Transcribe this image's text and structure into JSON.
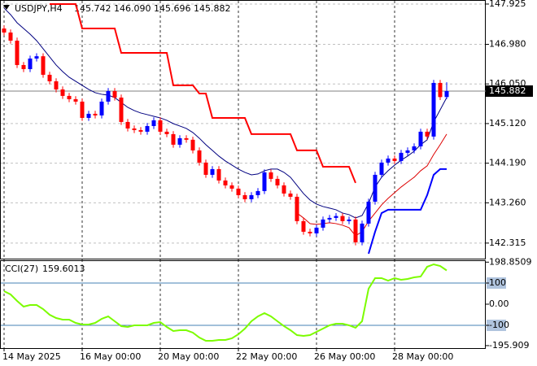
{
  "chart_data": [
    {
      "type": "candlestick",
      "symbol": "USDJPY,H4",
      "quote": "145.742 146.090 145.696 145.882",
      "up_color": "#0000ff",
      "down_color": "#ff0000",
      "ylim": [
        141.95,
        148.02
      ],
      "yticks": [
        147.925,
        {
          "value": 146.98,
          "label": "146.980"
        },
        {
          "value": 146.05,
          "label": "146.050"
        },
        {
          "value": 145.12,
          "label": "145.120"
        },
        {
          "value": 144.19,
          "label": "144.190"
        },
        {
          "value": 143.26,
          "label": "143.260"
        },
        142.315
      ],
      "xticks": [
        {
          "value": 0,
          "label": "14 May 2025"
        },
        {
          "value": 12,
          "label": "16 May 00:00"
        },
        {
          "value": 24,
          "label": "20 May 00:00"
        },
        {
          "value": 36,
          "label": "22 May 00:00"
        },
        {
          "value": 48,
          "label": "26 May 00:00"
        },
        {
          "value": 60,
          "label": "28 May 00:00"
        }
      ],
      "last_price": 145.882,
      "open": [
        147.35,
        147.257,
        147.066,
        146.494,
        146.398,
        146.646,
        146.7,
        146.265,
        146.112,
        145.921,
        145.769,
        145.692,
        145.635,
        145.253,
        145.349,
        145.311,
        145.635,
        145.883,
        145.73,
        145.158,
        145.005,
        144.967,
        144.929,
        145.062,
        145.196,
        144.929,
        144.872,
        144.624,
        144.776,
        144.74,
        144.49,
        144.204,
        143.917,
        144.051,
        143.784,
        143.669,
        143.593,
        143.44,
        143.345,
        143.44,
        143.536,
        143.975,
        143.822,
        143.669,
        143.478,
        143.402,
        142.83,
        142.581,
        142.543,
        142.677,
        142.868,
        142.906,
        142.95,
        142.83,
        142.868,
        142.333,
        142.772,
        143.287,
        143.917,
        144.204,
        144.299,
        144.242,
        144.433,
        144.49,
        144.585,
        144.929,
        144.815,
        146.074,
        145.742
      ],
      "high": [
        147.42,
        147.327,
        147.136,
        146.564,
        146.716,
        146.77,
        146.77,
        146.335,
        146.182,
        145.991,
        145.839,
        145.762,
        145.705,
        145.419,
        145.419,
        145.705,
        145.953,
        145.953,
        145.8,
        145.228,
        145.075,
        145.037,
        145.132,
        145.266,
        145.266,
        144.999,
        144.942,
        144.846,
        144.846,
        144.81,
        144.56,
        144.274,
        144.121,
        144.121,
        143.854,
        143.739,
        143.663,
        143.51,
        143.51,
        143.606,
        144.045,
        144.045,
        143.892,
        143.739,
        143.548,
        143.472,
        142.9,
        142.651,
        142.747,
        142.938,
        142.976,
        143.02,
        143.02,
        142.938,
        142.938,
        142.842,
        143.357,
        143.987,
        144.274,
        144.369,
        144.369,
        144.503,
        144.56,
        144.655,
        144.999,
        144.999,
        146.144,
        146.144,
        146.09
      ],
      "low": [
        147.187,
        146.996,
        146.424,
        146.328,
        146.328,
        146.576,
        146.195,
        146.042,
        145.851,
        145.699,
        145.622,
        145.565,
        145.183,
        145.183,
        145.241,
        145.241,
        145.565,
        145.66,
        145.088,
        144.935,
        144.897,
        144.859,
        144.859,
        144.992,
        144.859,
        144.802,
        144.554,
        144.554,
        144.67,
        144.42,
        144.134,
        143.847,
        143.847,
        143.714,
        143.599,
        143.523,
        143.37,
        143.275,
        143.275,
        143.37,
        143.466,
        143.752,
        143.599,
        143.408,
        143.332,
        142.76,
        142.511,
        142.473,
        142.473,
        142.607,
        142.798,
        142.836,
        142.76,
        142.76,
        142.263,
        142.263,
        142.702,
        143.217,
        143.847,
        144.134,
        144.172,
        144.172,
        144.363,
        144.42,
        144.515,
        144.745,
        144.745,
        145.672,
        145.696
      ],
      "close": [
        147.257,
        147.066,
        146.494,
        146.398,
        146.646,
        146.7,
        146.265,
        146.112,
        145.921,
        145.769,
        145.692,
        145.635,
        145.253,
        145.349,
        145.311,
        145.635,
        145.883,
        145.73,
        145.158,
        145.005,
        144.967,
        144.929,
        145.062,
        145.196,
        144.929,
        144.872,
        144.624,
        144.776,
        144.74,
        144.49,
        144.204,
        143.917,
        144.051,
        143.784,
        143.669,
        143.593,
        143.44,
        143.345,
        143.44,
        143.536,
        143.975,
        143.822,
        143.669,
        143.478,
        143.402,
        142.83,
        142.581,
        142.543,
        142.677,
        142.868,
        142.906,
        142.95,
        142.83,
        142.868,
        142.333,
        142.772,
        143.287,
        143.917,
        144.204,
        144.299,
        144.242,
        144.433,
        144.49,
        144.585,
        144.929,
        144.815,
        146.074,
        145.742,
        145.882
      ],
      "series": [
        {
          "color": "#ff0000",
          "width": 2,
          "values": [
            null,
            null,
            null,
            null,
            null,
            null,
            null,
            147.925,
            147.925,
            147.925,
            147.925,
            147.925,
            147.353,
            147.353,
            147.353,
            147.353,
            147.353,
            147.353,
            146.78,
            146.78,
            146.78,
            146.78,
            146.78,
            146.78,
            146.78,
            146.78,
            146.017,
            146.017,
            146.017,
            146.017,
            145.826,
            145.826,
            145.253,
            145.253,
            145.253,
            145.253,
            145.253,
            145.253,
            144.872,
            144.872,
            144.872,
            144.872,
            144.872,
            144.872,
            144.872,
            144.49,
            144.49,
            144.49,
            144.49,
            144.108,
            144.108,
            144.108,
            144.108,
            144.108,
            143.727,
            null,
            null,
            null,
            null,
            null,
            null,
            null,
            null,
            null,
            null,
            null,
            null,
            null,
            null
          ]
        },
        {
          "color": "#000080",
          "width": 1,
          "values": [
            147.83,
            147.677,
            147.486,
            147.353,
            147.219,
            147.066,
            146.875,
            146.685,
            146.494,
            146.341,
            146.207,
            146.112,
            146.017,
            145.921,
            145.845,
            145.807,
            145.788,
            145.73,
            145.616,
            145.501,
            145.425,
            145.368,
            145.33,
            145.291,
            145.253,
            145.196,
            145.119,
            145.062,
            145.005,
            144.91,
            144.776,
            144.624,
            144.49,
            144.356,
            144.242,
            144.146,
            144.051,
            143.975,
            143.917,
            143.937,
            144.013,
            144.051,
            144.051,
            143.975,
            143.86,
            143.669,
            143.478,
            143.326,
            143.23,
            143.173,
            143.135,
            143.097,
            143.02,
            142.982,
            142.906,
            142.963,
            143.249,
            143.631,
            143.86,
            144.013,
            144.146,
            144.261,
            144.356,
            144.471,
            144.624,
            144.738,
            145.158,
            145.444,
            145.73
          ]
        },
        {
          "color": "#dd0000",
          "width": 1,
          "values": [
            null,
            null,
            null,
            null,
            null,
            null,
            null,
            null,
            null,
            null,
            null,
            null,
            null,
            null,
            null,
            null,
            null,
            null,
            null,
            null,
            null,
            null,
            null,
            null,
            null,
            null,
            null,
            null,
            null,
            null,
            null,
            null,
            null,
            null,
            null,
            null,
            null,
            null,
            null,
            null,
            null,
            null,
            null,
            null,
            null,
            143.02,
            142.906,
            142.772,
            142.753,
            142.772,
            142.792,
            142.772,
            142.734,
            142.677,
            142.486,
            142.581,
            142.83,
            143.02,
            143.211,
            143.364,
            143.498,
            143.631,
            143.746,
            143.86,
            144.013,
            144.127,
            144.394,
            144.624,
            144.872
          ]
        },
        {
          "color": "#0000ff",
          "width": 2,
          "values": [
            null,
            null,
            null,
            null,
            null,
            null,
            null,
            null,
            null,
            null,
            null,
            null,
            null,
            null,
            null,
            null,
            null,
            null,
            null,
            null,
            null,
            null,
            null,
            null,
            null,
            null,
            null,
            null,
            null,
            null,
            null,
            null,
            null,
            null,
            null,
            null,
            null,
            null,
            null,
            null,
            null,
            null,
            null,
            null,
            null,
            null,
            null,
            null,
            null,
            null,
            null,
            null,
            null,
            null,
            null,
            null,
            142.066,
            142.581,
            143.02,
            143.097,
            143.097,
            143.097,
            143.097,
            143.097,
            143.097,
            143.44,
            143.917,
            144.051,
            144.051
          ]
        }
      ]
    },
    {
      "type": "line",
      "title": "CCI(27)",
      "current_value": 159.6013,
      "color": "#7cfc00",
      "ylim": [
        -207.7,
        207.7
      ],
      "yticks": [
        198.8509,
        100,
        {
          "value": 0,
          "label": "0.00"
        },
        -100,
        -195.909
      ],
      "levels": [
        100,
        -100
      ],
      "values": [
        61.5,
        46.2,
        15.4,
        -11.5,
        -3.8,
        -3.8,
        -23.1,
        -50.0,
        -65.4,
        -73.1,
        -73.1,
        -88.5,
        -96.2,
        -96.2,
        -88.5,
        -69.2,
        -57.7,
        -80.8,
        -103.8,
        -107.7,
        -100.0,
        -100.0,
        -100.0,
        -88.5,
        -84.6,
        -107.7,
        -126.9,
        -123.1,
        -123.1,
        -134.6,
        -157.7,
        -173.1,
        -173.1,
        -169.2,
        -169.2,
        -161.5,
        -142.3,
        -115.4,
        -80.8,
        -57.7,
        -42.3,
        -57.7,
        -80.8,
        -103.8,
        -123.1,
        -146.2,
        -150.0,
        -146.2,
        -130.8,
        -115.4,
        -100.0,
        -92.3,
        -92.3,
        -100.0,
        -111.5,
        -80.8,
        73.1,
        123.1,
        123.1,
        111.5,
        123.1,
        115.4,
        119.2,
        126.9,
        130.8,
        176.9,
        188.5,
        180.8,
        159.6013
      ]
    }
  ]
}
